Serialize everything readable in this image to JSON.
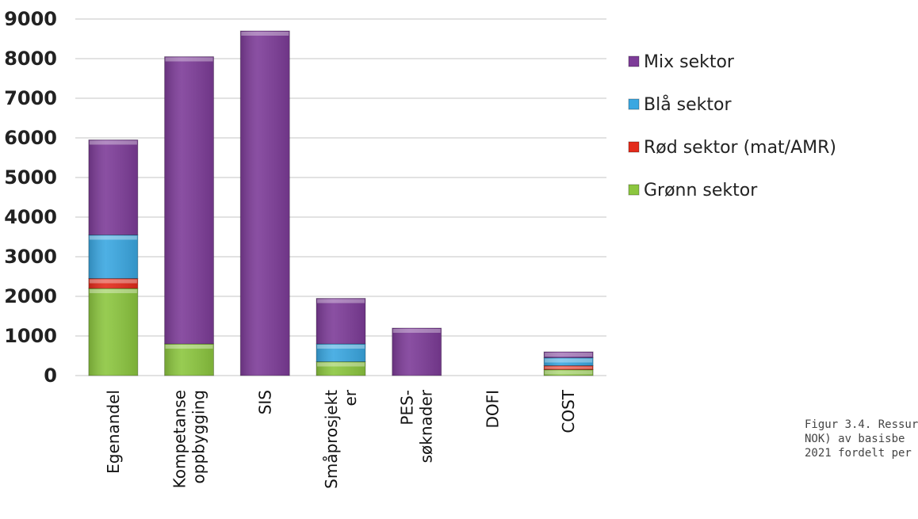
{
  "chart_data": {
    "type": "bar",
    "stacked": true,
    "categories": [
      [
        "Egenandel"
      ],
      [
        "Kompetanse",
        "oppbygging"
      ],
      [
        "SIS"
      ],
      [
        "Småprosjekt",
        "er"
      ],
      [
        "PES-",
        "søknader"
      ],
      [
        "DOFI"
      ],
      [
        "COST"
      ]
    ],
    "series": [
      {
        "name": "Grønn sektor",
        "color": "#8cc63f",
        "values": [
          2200,
          800,
          0,
          350,
          0,
          0,
          150
        ]
      },
      {
        "name": "Rød sektor (mat/AMR)",
        "color": "#e32b1b",
        "values": [
          250,
          0,
          0,
          0,
          0,
          0,
          100
        ]
      },
      {
        "name": "Blå sektor",
        "color": "#3aa7e1",
        "values": [
          1100,
          0,
          0,
          450,
          0,
          0,
          200
        ]
      },
      {
        "name": "Mix sektor",
        "color": "#7d3c98",
        "values": [
          2400,
          7250,
          8700,
          1150,
          1200,
          0,
          150
        ]
      }
    ],
    "legend_order": [
      3,
      2,
      1,
      0
    ],
    "ylim": [
      0,
      9000
    ],
    "yticks": [
      0,
      1000,
      2000,
      3000,
      4000,
      5000,
      6000,
      7000,
      8000,
      9000
    ],
    "grid": true,
    "legend_position": "right"
  },
  "caption": {
    "lines": [
      "Figur 3.4. Ressur",
      "NOK) av basisbe",
      "2021 fordelt per"
    ]
  }
}
